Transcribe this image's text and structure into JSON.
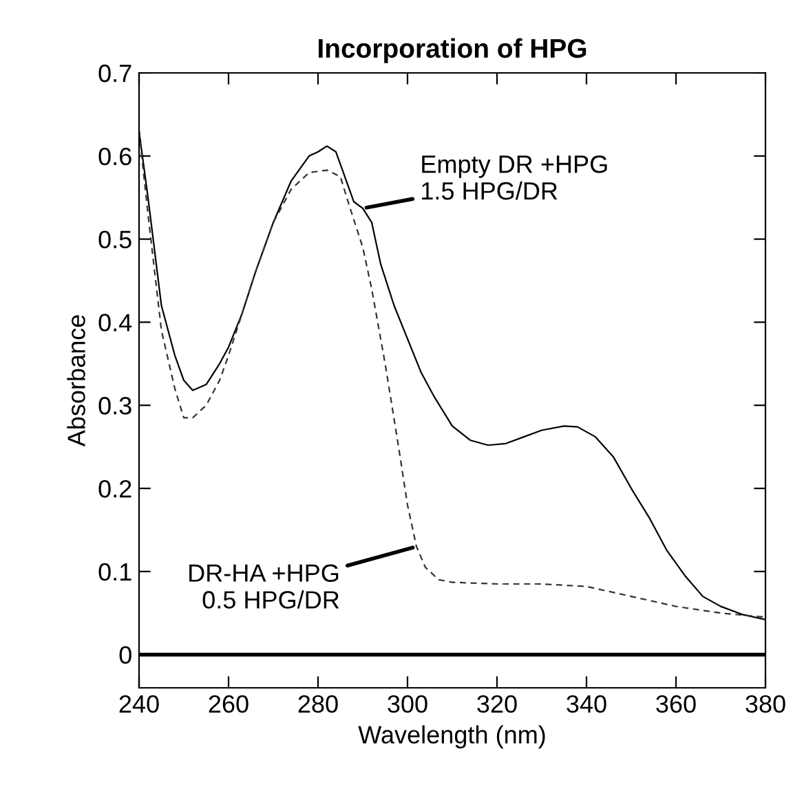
{
  "chart_data": {
    "type": "line",
    "title": "Incorporation of HPG",
    "xlabel": "Wavelength (nm)",
    "ylabel": "Absorbance",
    "xlim": [
      240,
      380
    ],
    "xticks": [
      240,
      260,
      280,
      300,
      320,
      340,
      360,
      380
    ],
    "ylim": [
      -0.04,
      0.7
    ],
    "yticks": [
      0,
      0.1,
      0.2,
      0.3,
      0.4,
      0.5,
      0.6,
      0.7
    ],
    "grid": false,
    "legend": false,
    "series": [
      {
        "color": "#000000",
        "line_style": "solid",
        "x": [
          240,
          242,
          245,
          248,
          250,
          252,
          255,
          258,
          260,
          263,
          266,
          270,
          274,
          278,
          280,
          282,
          284,
          286,
          288,
          290,
          292,
          294,
          297,
          300,
          303,
          306,
          310,
          314,
          318,
          322,
          326,
          330,
          335,
          338,
          342,
          346,
          350,
          354,
          358,
          362,
          366,
          370,
          375,
          380
        ],
        "values": [
          0.63,
          0.55,
          0.42,
          0.36,
          0.33,
          0.318,
          0.325,
          0.35,
          0.37,
          0.41,
          0.46,
          0.52,
          0.57,
          0.6,
          0.605,
          0.612,
          0.605,
          0.575,
          0.545,
          0.537,
          0.52,
          0.47,
          0.42,
          0.38,
          0.34,
          0.31,
          0.275,
          0.258,
          0.252,
          0.254,
          0.262,
          0.27,
          0.275,
          0.274,
          0.262,
          0.238,
          0.2,
          0.165,
          0.125,
          0.095,
          0.07,
          0.058,
          0.048,
          0.042
        ]
      },
      {
        "color": "#333333",
        "line_style": "dashed",
        "x": [
          240,
          242,
          245,
          248,
          250,
          252,
          255,
          258,
          260,
          263,
          266,
          270,
          274,
          278,
          282,
          285,
          287,
          290,
          292,
          295,
          298,
          300,
          302,
          304,
          307,
          310,
          320,
          330,
          340,
          350,
          360,
          370,
          380
        ],
        "values": [
          0.63,
          0.53,
          0.39,
          0.32,
          0.285,
          0.285,
          0.3,
          0.33,
          0.36,
          0.41,
          0.46,
          0.52,
          0.56,
          0.58,
          0.583,
          0.575,
          0.54,
          0.49,
          0.44,
          0.35,
          0.25,
          0.18,
          0.13,
          0.105,
          0.09,
          0.087,
          0.085,
          0.085,
          0.082,
          0.07,
          0.058,
          0.05,
          0.045
        ]
      },
      {
        "color": "#000000",
        "line_style": "solid",
        "x": [
          240,
          380
        ],
        "values": [
          0,
          0
        ]
      }
    ],
    "annotations": [
      {
        "text": "Empty DR +HPG\n1.5 HPG/DR",
        "x": 290,
        "y": 0.537
      },
      {
        "text": "DR-HA +HPG\n0.5 HPG/DR",
        "x": 302,
        "y": 0.13
      }
    ]
  }
}
